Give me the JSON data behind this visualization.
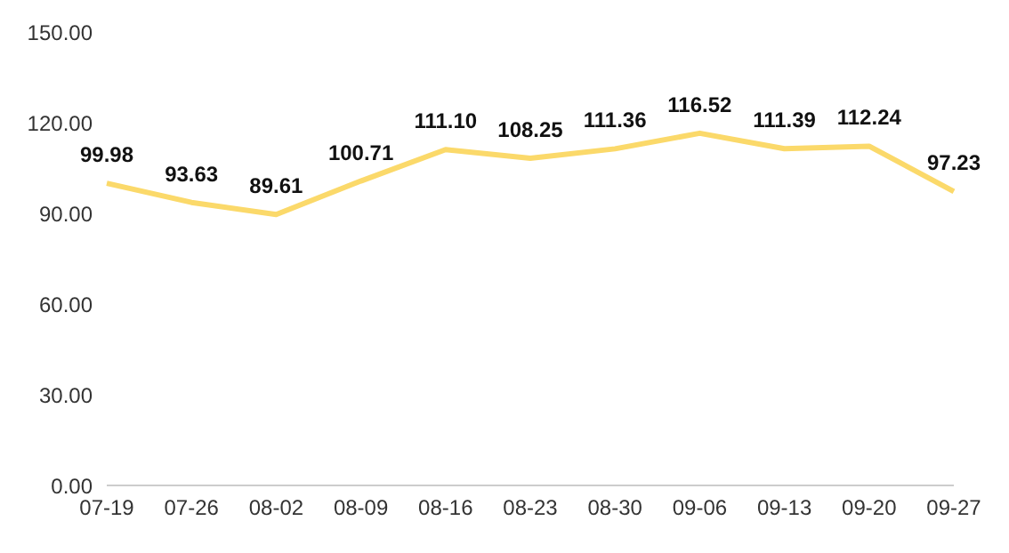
{
  "chart_data": {
    "type": "line",
    "categories": [
      "07-19",
      "07-26",
      "08-02",
      "08-09",
      "08-16",
      "08-23",
      "08-30",
      "09-06",
      "09-13",
      "09-20",
      "09-27"
    ],
    "series": [
      {
        "color": "#fbd96a",
        "values": [
          99.98,
          93.63,
          89.61,
          100.71,
          111.1,
          108.25,
          111.36,
          116.52,
          111.39,
          112.24,
          97.23
        ]
      }
    ],
    "ylim": [
      0,
      150
    ],
    "yticks": [
      {
        "value": 0,
        "label": "0.00"
      },
      {
        "value": 30,
        "label": "30.00"
      },
      {
        "value": 60,
        "label": "60.00"
      },
      {
        "value": 90,
        "label": "90.00"
      },
      {
        "value": 120,
        "label": "120.00"
      },
      {
        "value": 150,
        "label": "150.00"
      }
    ],
    "value_labels": [
      "99.98",
      "93.63",
      "89.61",
      "100.71",
      "111.10",
      "108.25",
      "111.36",
      "116.52",
      "111.39",
      "112.24",
      "97.23"
    ],
    "grid": false,
    "legend": false,
    "marker": "none",
    "line_style": "solid"
  }
}
